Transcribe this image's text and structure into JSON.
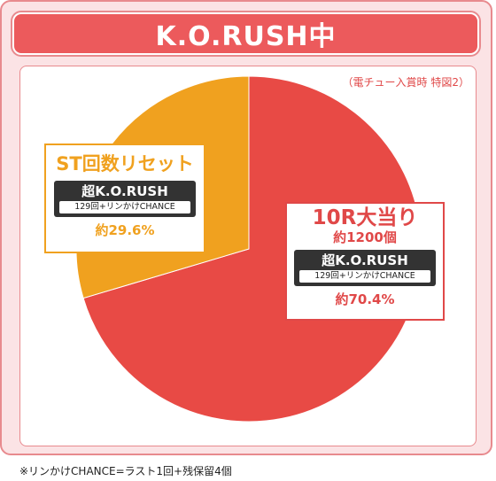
{
  "header": {
    "title": "K.O.RUSH中"
  },
  "note_top": "（電チュー入賞時 特図2）",
  "footnote": "※リンかけCHANCE=ラスト1回+残保留4個",
  "chart_data": {
    "type": "pie",
    "slices": [
      {
        "label": "10R大当り",
        "sublabel": "約1200個",
        "mode": "超K.O.RUSH",
        "detail": "129回+リンかけCHANCE",
        "value": 70.4,
        "value_label": "約70.4%",
        "color": "#e84a45"
      },
      {
        "label": "ST回数リセット",
        "mode": "超K.O.RUSH",
        "detail": "129回+リンかけCHANCE",
        "value": 29.6,
        "value_label": "約29.6%",
        "color": "#f0a11f"
      }
    ]
  }
}
